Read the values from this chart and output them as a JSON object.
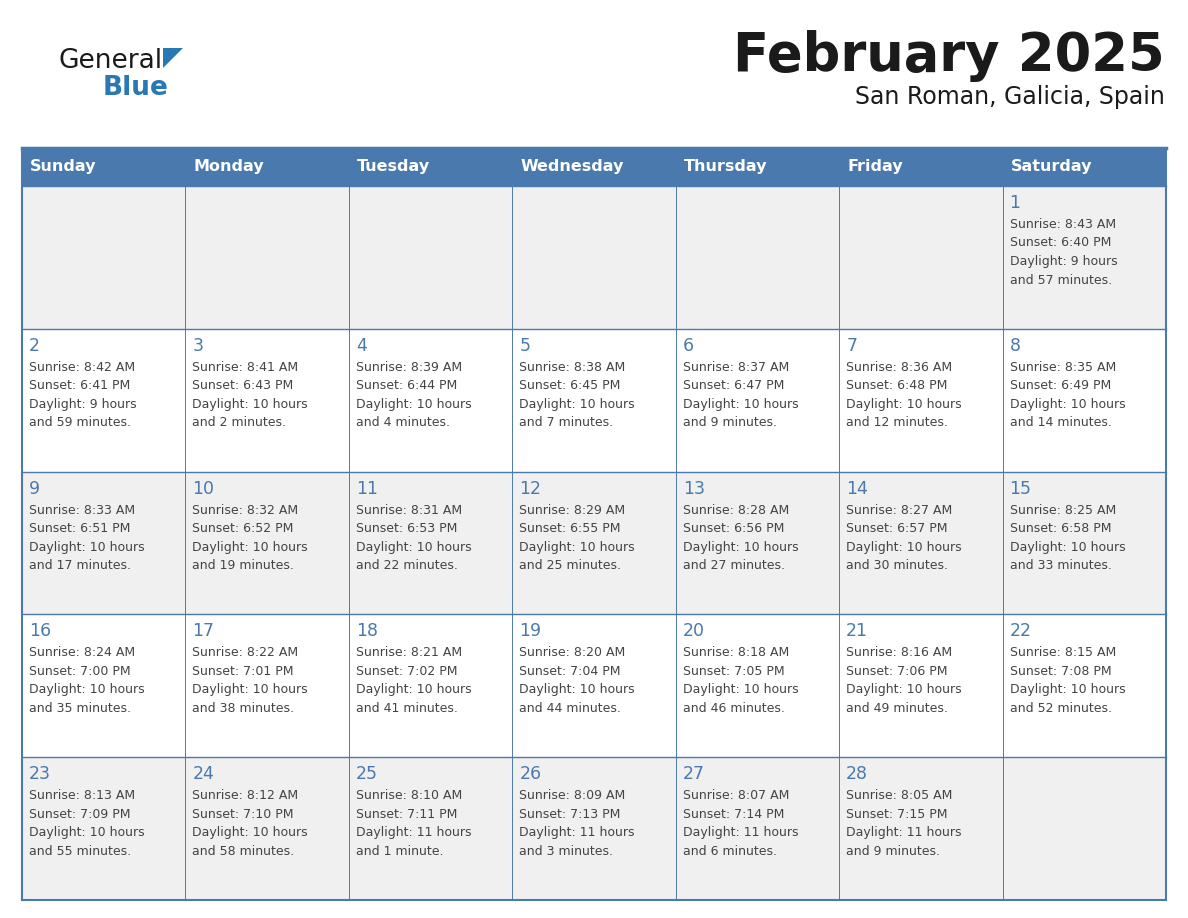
{
  "title": "February 2025",
  "subtitle": "San Roman, Galicia, Spain",
  "days_of_week": [
    "Sunday",
    "Monday",
    "Tuesday",
    "Wednesday",
    "Thursday",
    "Friday",
    "Saturday"
  ],
  "header_bg": "#4a7aad",
  "header_text_color": "#ffffff",
  "cell_bg_row0": "#f0f0f0",
  "cell_bg_row1": "#ffffff",
  "cell_bg_row2": "#f0f0f0",
  "cell_bg_row3": "#ffffff",
  "cell_bg_row4": "#f0f0f0",
  "border_color": "#4a7aad",
  "day_number_color": "#4a7aad",
  "text_color": "#444444",
  "title_color": "#1a1a1a",
  "logo_blue_color": "#2878b4",
  "logo_dark_color": "#1a1a1a",
  "calendar_data": [
    [
      null,
      null,
      null,
      null,
      null,
      null,
      {
        "day": 1,
        "sunrise": "8:43 AM",
        "sunset": "6:40 PM",
        "daylight": "9 hours and 57 minutes."
      }
    ],
    [
      {
        "day": 2,
        "sunrise": "8:42 AM",
        "sunset": "6:41 PM",
        "daylight": "9 hours and 59 minutes."
      },
      {
        "day": 3,
        "sunrise": "8:41 AM",
        "sunset": "6:43 PM",
        "daylight": "10 hours and 2 minutes."
      },
      {
        "day": 4,
        "sunrise": "8:39 AM",
        "sunset": "6:44 PM",
        "daylight": "10 hours and 4 minutes."
      },
      {
        "day": 5,
        "sunrise": "8:38 AM",
        "sunset": "6:45 PM",
        "daylight": "10 hours and 7 minutes."
      },
      {
        "day": 6,
        "sunrise": "8:37 AM",
        "sunset": "6:47 PM",
        "daylight": "10 hours and 9 minutes."
      },
      {
        "day": 7,
        "sunrise": "8:36 AM",
        "sunset": "6:48 PM",
        "daylight": "10 hours and 12 minutes."
      },
      {
        "day": 8,
        "sunrise": "8:35 AM",
        "sunset": "6:49 PM",
        "daylight": "10 hours and 14 minutes."
      }
    ],
    [
      {
        "day": 9,
        "sunrise": "8:33 AM",
        "sunset": "6:51 PM",
        "daylight": "10 hours and 17 minutes."
      },
      {
        "day": 10,
        "sunrise": "8:32 AM",
        "sunset": "6:52 PM",
        "daylight": "10 hours and 19 minutes."
      },
      {
        "day": 11,
        "sunrise": "8:31 AM",
        "sunset": "6:53 PM",
        "daylight": "10 hours and 22 minutes."
      },
      {
        "day": 12,
        "sunrise": "8:29 AM",
        "sunset": "6:55 PM",
        "daylight": "10 hours and 25 minutes."
      },
      {
        "day": 13,
        "sunrise": "8:28 AM",
        "sunset": "6:56 PM",
        "daylight": "10 hours and 27 minutes."
      },
      {
        "day": 14,
        "sunrise": "8:27 AM",
        "sunset": "6:57 PM",
        "daylight": "10 hours and 30 minutes."
      },
      {
        "day": 15,
        "sunrise": "8:25 AM",
        "sunset": "6:58 PM",
        "daylight": "10 hours and 33 minutes."
      }
    ],
    [
      {
        "day": 16,
        "sunrise": "8:24 AM",
        "sunset": "7:00 PM",
        "daylight": "10 hours and 35 minutes."
      },
      {
        "day": 17,
        "sunrise": "8:22 AM",
        "sunset": "7:01 PM",
        "daylight": "10 hours and 38 minutes."
      },
      {
        "day": 18,
        "sunrise": "8:21 AM",
        "sunset": "7:02 PM",
        "daylight": "10 hours and 41 minutes."
      },
      {
        "day": 19,
        "sunrise": "8:20 AM",
        "sunset": "7:04 PM",
        "daylight": "10 hours and 44 minutes."
      },
      {
        "day": 20,
        "sunrise": "8:18 AM",
        "sunset": "7:05 PM",
        "daylight": "10 hours and 46 minutes."
      },
      {
        "day": 21,
        "sunrise": "8:16 AM",
        "sunset": "7:06 PM",
        "daylight": "10 hours and 49 minutes."
      },
      {
        "day": 22,
        "sunrise": "8:15 AM",
        "sunset": "7:08 PM",
        "daylight": "10 hours and 52 minutes."
      }
    ],
    [
      {
        "day": 23,
        "sunrise": "8:13 AM",
        "sunset": "7:09 PM",
        "daylight": "10 hours and 55 minutes."
      },
      {
        "day": 24,
        "sunrise": "8:12 AM",
        "sunset": "7:10 PM",
        "daylight": "10 hours and 58 minutes."
      },
      {
        "day": 25,
        "sunrise": "8:10 AM",
        "sunset": "7:11 PM",
        "daylight": "11 hours and 1 minute."
      },
      {
        "day": 26,
        "sunrise": "8:09 AM",
        "sunset": "7:13 PM",
        "daylight": "11 hours and 3 minutes."
      },
      {
        "day": 27,
        "sunrise": "8:07 AM",
        "sunset": "7:14 PM",
        "daylight": "11 hours and 6 minutes."
      },
      {
        "day": 28,
        "sunrise": "8:05 AM",
        "sunset": "7:15 PM",
        "daylight": "11 hours and 9 minutes."
      },
      null
    ]
  ]
}
